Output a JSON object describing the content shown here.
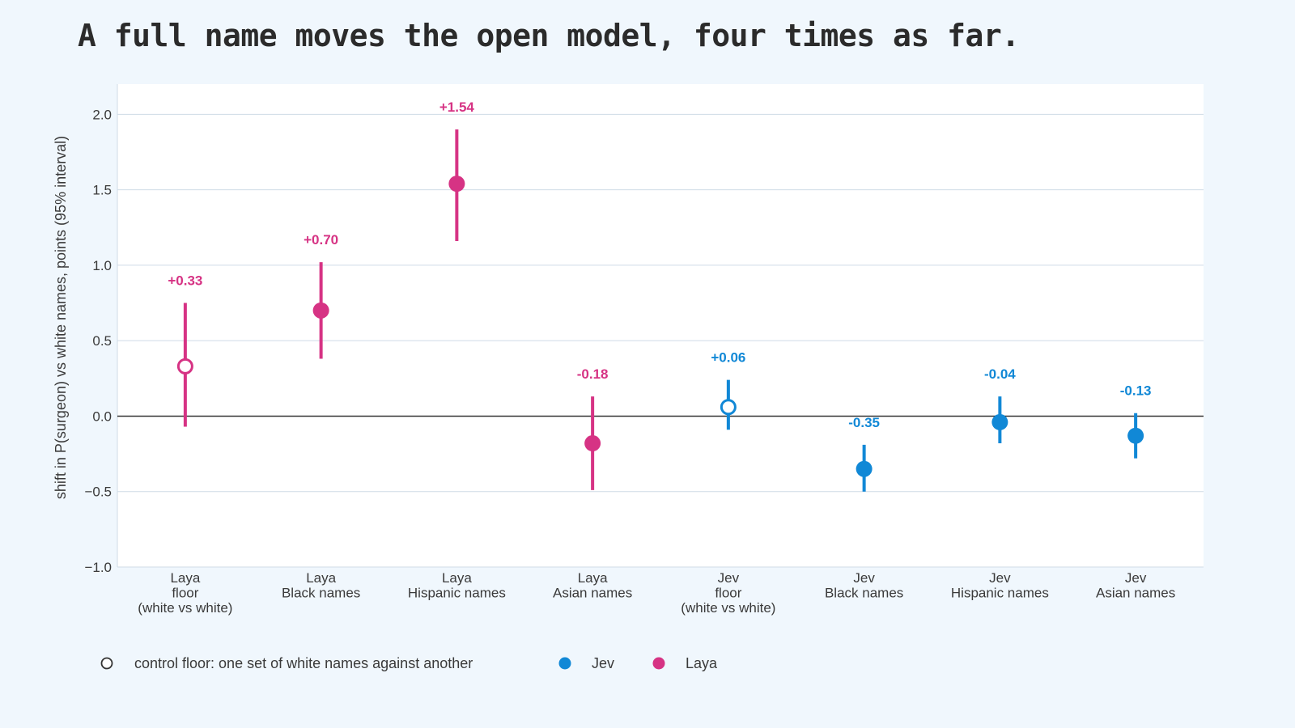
{
  "page": {
    "title": "A full name moves the open model, four times as far."
  },
  "chart_data": {
    "type": "scatter",
    "ylabel": "shift in P(surgeon) vs white names, points (95% interval)",
    "ylim": [
      -1.0,
      2.2
    ],
    "yticks": [
      -1.0,
      -0.5,
      0.0,
      0.5,
      1.0,
      1.5,
      2.0
    ],
    "ytick_labels": [
      "−1.0",
      "−0.5",
      "0.0",
      "0.5",
      "1.0",
      "1.5",
      "2.0"
    ],
    "grid": true,
    "zero_line": true,
    "colors": {
      "Laya": "#d63384",
      "Jev": "#1188d6"
    },
    "points": [
      {
        "label_lines": [
          "Laya",
          "floor",
          "(white vs white)"
        ],
        "series": "Laya",
        "value": 0.33,
        "low": -0.07,
        "high": 0.75,
        "control": true,
        "value_label": "+0.33"
      },
      {
        "label_lines": [
          "Laya",
          "Black names"
        ],
        "series": "Laya",
        "value": 0.7,
        "low": 0.38,
        "high": 1.02,
        "control": false,
        "value_label": "+0.70"
      },
      {
        "label_lines": [
          "Laya",
          "Hispanic names"
        ],
        "series": "Laya",
        "value": 1.54,
        "low": 1.16,
        "high": 1.9,
        "control": false,
        "value_label": "+1.54"
      },
      {
        "label_lines": [
          "Laya",
          "Asian names"
        ],
        "series": "Laya",
        "value": -0.18,
        "low": -0.49,
        "high": 0.13,
        "control": false,
        "value_label": "-0.18"
      },
      {
        "label_lines": [
          "Jev",
          "floor",
          "(white vs white)"
        ],
        "series": "Jev",
        "value": 0.06,
        "low": -0.09,
        "high": 0.24,
        "control": true,
        "value_label": "+0.06"
      },
      {
        "label_lines": [
          "Jev",
          "Black names"
        ],
        "series": "Jev",
        "value": -0.35,
        "low": -0.5,
        "high": -0.19,
        "control": false,
        "value_label": "-0.35"
      },
      {
        "label_lines": [
          "Jev",
          "Hispanic names"
        ],
        "series": "Jev",
        "value": -0.04,
        "low": -0.18,
        "high": 0.13,
        "control": false,
        "value_label": "-0.04"
      },
      {
        "label_lines": [
          "Jev",
          "Asian names"
        ],
        "series": "Jev",
        "value": -0.13,
        "low": -0.28,
        "high": 0.02,
        "control": false,
        "value_label": "-0.13"
      }
    ],
    "legend": [
      {
        "kind": "control",
        "label": "control floor: one set of white names against another"
      },
      {
        "kind": "series",
        "series": "Jev",
        "label": "Jev"
      },
      {
        "kind": "series",
        "series": "Laya",
        "label": "Laya"
      }
    ],
    "legend_position": "bottom-left"
  }
}
